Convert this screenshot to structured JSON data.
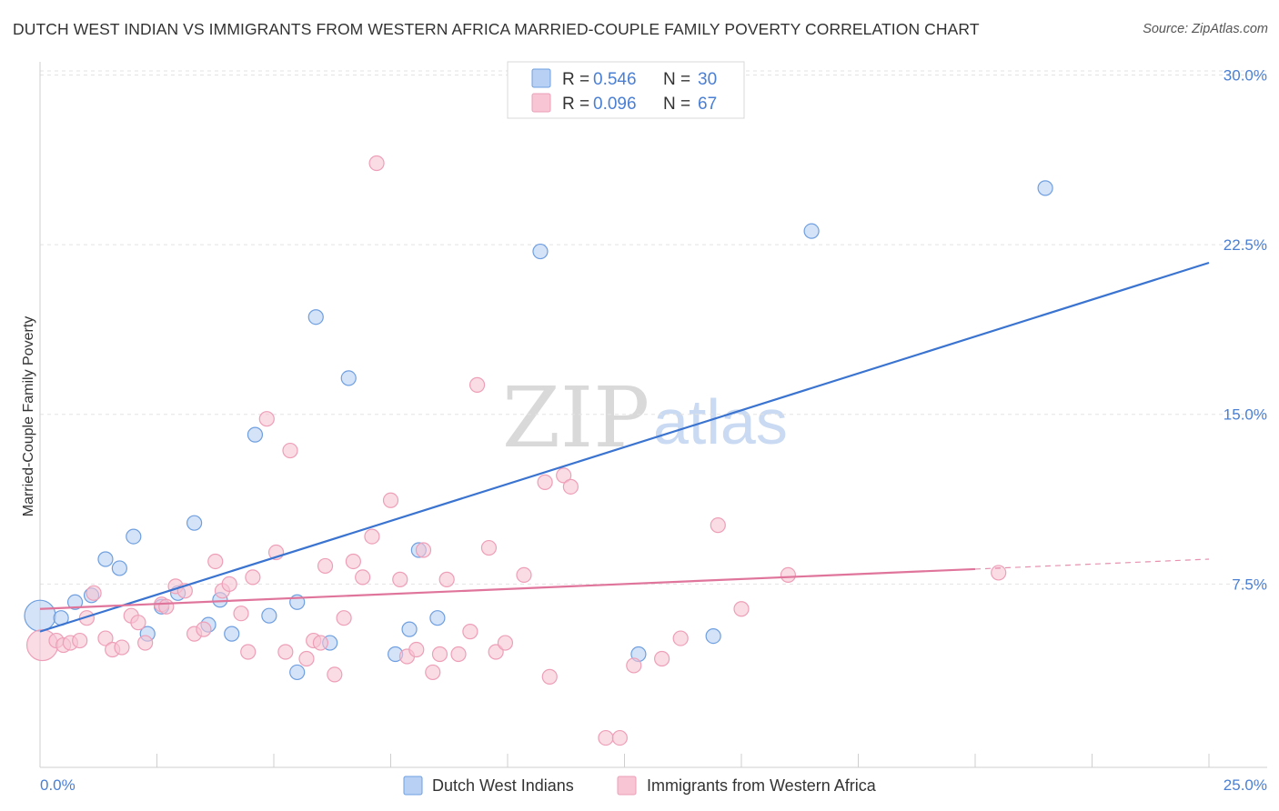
{
  "header": {
    "title": "DUTCH WEST INDIAN VS IMMIGRANTS FROM WESTERN AFRICA MARRIED-COUPLE FAMILY POVERTY CORRELATION CHART",
    "source": "Source: ZipAtlas.com"
  },
  "watermark": {
    "zip": "ZIP",
    "atlas": "atlas"
  },
  "chart_data": {
    "type": "scatter",
    "title": "DUTCH WEST INDIAN VS IMMIGRANTS FROM WESTERN AFRICA MARRIED-COUPLE FAMILY POVERTY CORRELATION CHART",
    "xlabel": "",
    "ylabel": "Married-Couple Family Poverty",
    "xlim": [
      0,
      25
    ],
    "ylim": [
      0,
      30.5
    ],
    "x_tick_labels": {
      "left": "0.0%",
      "right": "25.0%"
    },
    "y_ticks": [
      {
        "value": 7.5,
        "label": "7.5%"
      },
      {
        "value": 15.0,
        "label": "15.0%"
      },
      {
        "value": 22.5,
        "label": "22.5%"
      },
      {
        "value": 30.0,
        "label": "30.0%"
      }
    ],
    "x_minor_ticks": [
      2.5,
      5,
      7.5,
      10,
      12.5,
      15,
      17.5,
      20,
      22.5,
      25
    ],
    "grid": true,
    "legend": {
      "position": "top-center",
      "entries": [
        {
          "r_label": "R = ",
          "r_value": "0.546",
          "n_label": "N = ",
          "n_value": "30"
        },
        {
          "r_label": "R = ",
          "r_value": "0.096",
          "n_label": "N = ",
          "n_value": "67"
        }
      ]
    },
    "series": [
      {
        "name": "Dutch West Indians",
        "color": "#6f9fe0",
        "fill": "#b7d0f3",
        "line_color": "#3a74d0",
        "trend": {
          "x0": 0.0,
          "y0": 5.4,
          "x1": 25.0,
          "y1": 21.7,
          "dash_from": null
        },
        "points": [
          {
            "x": 0.0,
            "y": 6.1,
            "big": true
          },
          {
            "x": 0.45,
            "y": 6.0
          },
          {
            "x": 0.75,
            "y": 6.7
          },
          {
            "x": 1.1,
            "y": 7.0
          },
          {
            "x": 1.4,
            "y": 8.6
          },
          {
            "x": 1.7,
            "y": 8.2
          },
          {
            "x": 2.0,
            "y": 9.6
          },
          {
            "x": 2.3,
            "y": 5.3
          },
          {
            "x": 2.6,
            "y": 6.5
          },
          {
            "x": 2.95,
            "y": 7.1
          },
          {
            "x": 3.3,
            "y": 10.2
          },
          {
            "x": 3.6,
            "y": 5.7
          },
          {
            "x": 3.85,
            "y": 6.8
          },
          {
            "x": 4.1,
            "y": 5.3
          },
          {
            "x": 4.6,
            "y": 14.1
          },
          {
            "x": 4.9,
            "y": 6.1
          },
          {
            "x": 5.5,
            "y": 6.7
          },
          {
            "x": 5.5,
            "y": 3.6
          },
          {
            "x": 5.9,
            "y": 19.3
          },
          {
            "x": 6.2,
            "y": 4.9
          },
          {
            "x": 6.6,
            "y": 16.6
          },
          {
            "x": 7.6,
            "y": 4.4
          },
          {
            "x": 7.9,
            "y": 5.5
          },
          {
            "x": 8.1,
            "y": 9.0
          },
          {
            "x": 8.5,
            "y": 6.0
          },
          {
            "x": 10.7,
            "y": 22.2
          },
          {
            "x": 12.8,
            "y": 4.4
          },
          {
            "x": 14.4,
            "y": 5.2
          },
          {
            "x": 16.5,
            "y": 23.1
          },
          {
            "x": 21.5,
            "y": 25.0
          }
        ]
      },
      {
        "name": "Immigrants from Western Africa",
        "color": "#ee9fb8",
        "fill": "#f7c5d4",
        "line_color": "#e0759c",
        "trend": {
          "x0": 0.0,
          "y0": 6.4,
          "x1": 25.0,
          "y1": 8.6,
          "dash_from": 20.0
        },
        "points": [
          {
            "x": 0.05,
            "y": 4.8,
            "big": true
          },
          {
            "x": 0.35,
            "y": 5.0
          },
          {
            "x": 0.5,
            "y": 4.8
          },
          {
            "x": 0.65,
            "y": 4.9
          },
          {
            "x": 0.85,
            "y": 5.0
          },
          {
            "x": 1.0,
            "y": 6.0
          },
          {
            "x": 1.15,
            "y": 7.1
          },
          {
            "x": 1.4,
            "y": 5.1
          },
          {
            "x": 1.55,
            "y": 4.6
          },
          {
            "x": 1.75,
            "y": 4.7
          },
          {
            "x": 1.95,
            "y": 6.1
          },
          {
            "x": 2.1,
            "y": 5.8
          },
          {
            "x": 2.25,
            "y": 4.9
          },
          {
            "x": 2.6,
            "y": 6.6
          },
          {
            "x": 2.7,
            "y": 6.5
          },
          {
            "x": 2.9,
            "y": 7.4
          },
          {
            "x": 3.1,
            "y": 7.2
          },
          {
            "x": 3.3,
            "y": 5.3
          },
          {
            "x": 3.5,
            "y": 5.5
          },
          {
            "x": 3.75,
            "y": 8.5
          },
          {
            "x": 3.9,
            "y": 7.2
          },
          {
            "x": 4.05,
            "y": 7.5
          },
          {
            "x": 4.3,
            "y": 6.2
          },
          {
            "x": 4.45,
            "y": 4.5
          },
          {
            "x": 4.55,
            "y": 7.8
          },
          {
            "x": 4.85,
            "y": 14.8
          },
          {
            "x": 5.05,
            "y": 8.9
          },
          {
            "x": 5.25,
            "y": 4.5
          },
          {
            "x": 5.35,
            "y": 13.4
          },
          {
            "x": 5.7,
            "y": 4.2
          },
          {
            "x": 5.85,
            "y": 5.0
          },
          {
            "x": 6.0,
            "y": 4.9
          },
          {
            "x": 6.1,
            "y": 8.3
          },
          {
            "x": 6.3,
            "y": 3.5
          },
          {
            "x": 6.5,
            "y": 6.0
          },
          {
            "x": 6.7,
            "y": 8.5
          },
          {
            "x": 6.9,
            "y": 7.8
          },
          {
            "x": 7.1,
            "y": 9.6
          },
          {
            "x": 7.2,
            "y": 26.1
          },
          {
            "x": 7.5,
            "y": 11.2
          },
          {
            "x": 7.7,
            "y": 7.7
          },
          {
            "x": 7.85,
            "y": 4.3
          },
          {
            "x": 8.05,
            "y": 4.6
          },
          {
            "x": 8.2,
            "y": 9.0
          },
          {
            "x": 8.4,
            "y": 3.6
          },
          {
            "x": 8.55,
            "y": 4.4
          },
          {
            "x": 8.7,
            "y": 7.7
          },
          {
            "x": 8.95,
            "y": 4.4
          },
          {
            "x": 9.2,
            "y": 5.4
          },
          {
            "x": 9.35,
            "y": 16.3
          },
          {
            "x": 9.6,
            "y": 9.1
          },
          {
            "x": 9.75,
            "y": 4.5
          },
          {
            "x": 9.95,
            "y": 4.9
          },
          {
            "x": 10.35,
            "y": 7.9
          },
          {
            "x": 10.8,
            "y": 12.0
          },
          {
            "x": 10.9,
            "y": 3.4
          },
          {
            "x": 11.2,
            "y": 12.3
          },
          {
            "x": 11.35,
            "y": 11.8
          },
          {
            "x": 12.1,
            "y": 0.7
          },
          {
            "x": 12.4,
            "y": 0.7
          },
          {
            "x": 12.7,
            "y": 3.9
          },
          {
            "x": 13.3,
            "y": 4.2
          },
          {
            "x": 13.7,
            "y": 5.1
          },
          {
            "x": 14.5,
            "y": 10.1
          },
          {
            "x": 15.0,
            "y": 6.4
          },
          {
            "x": 16.0,
            "y": 7.9
          },
          {
            "x": 20.5,
            "y": 8.0
          }
        ]
      }
    ]
  }
}
